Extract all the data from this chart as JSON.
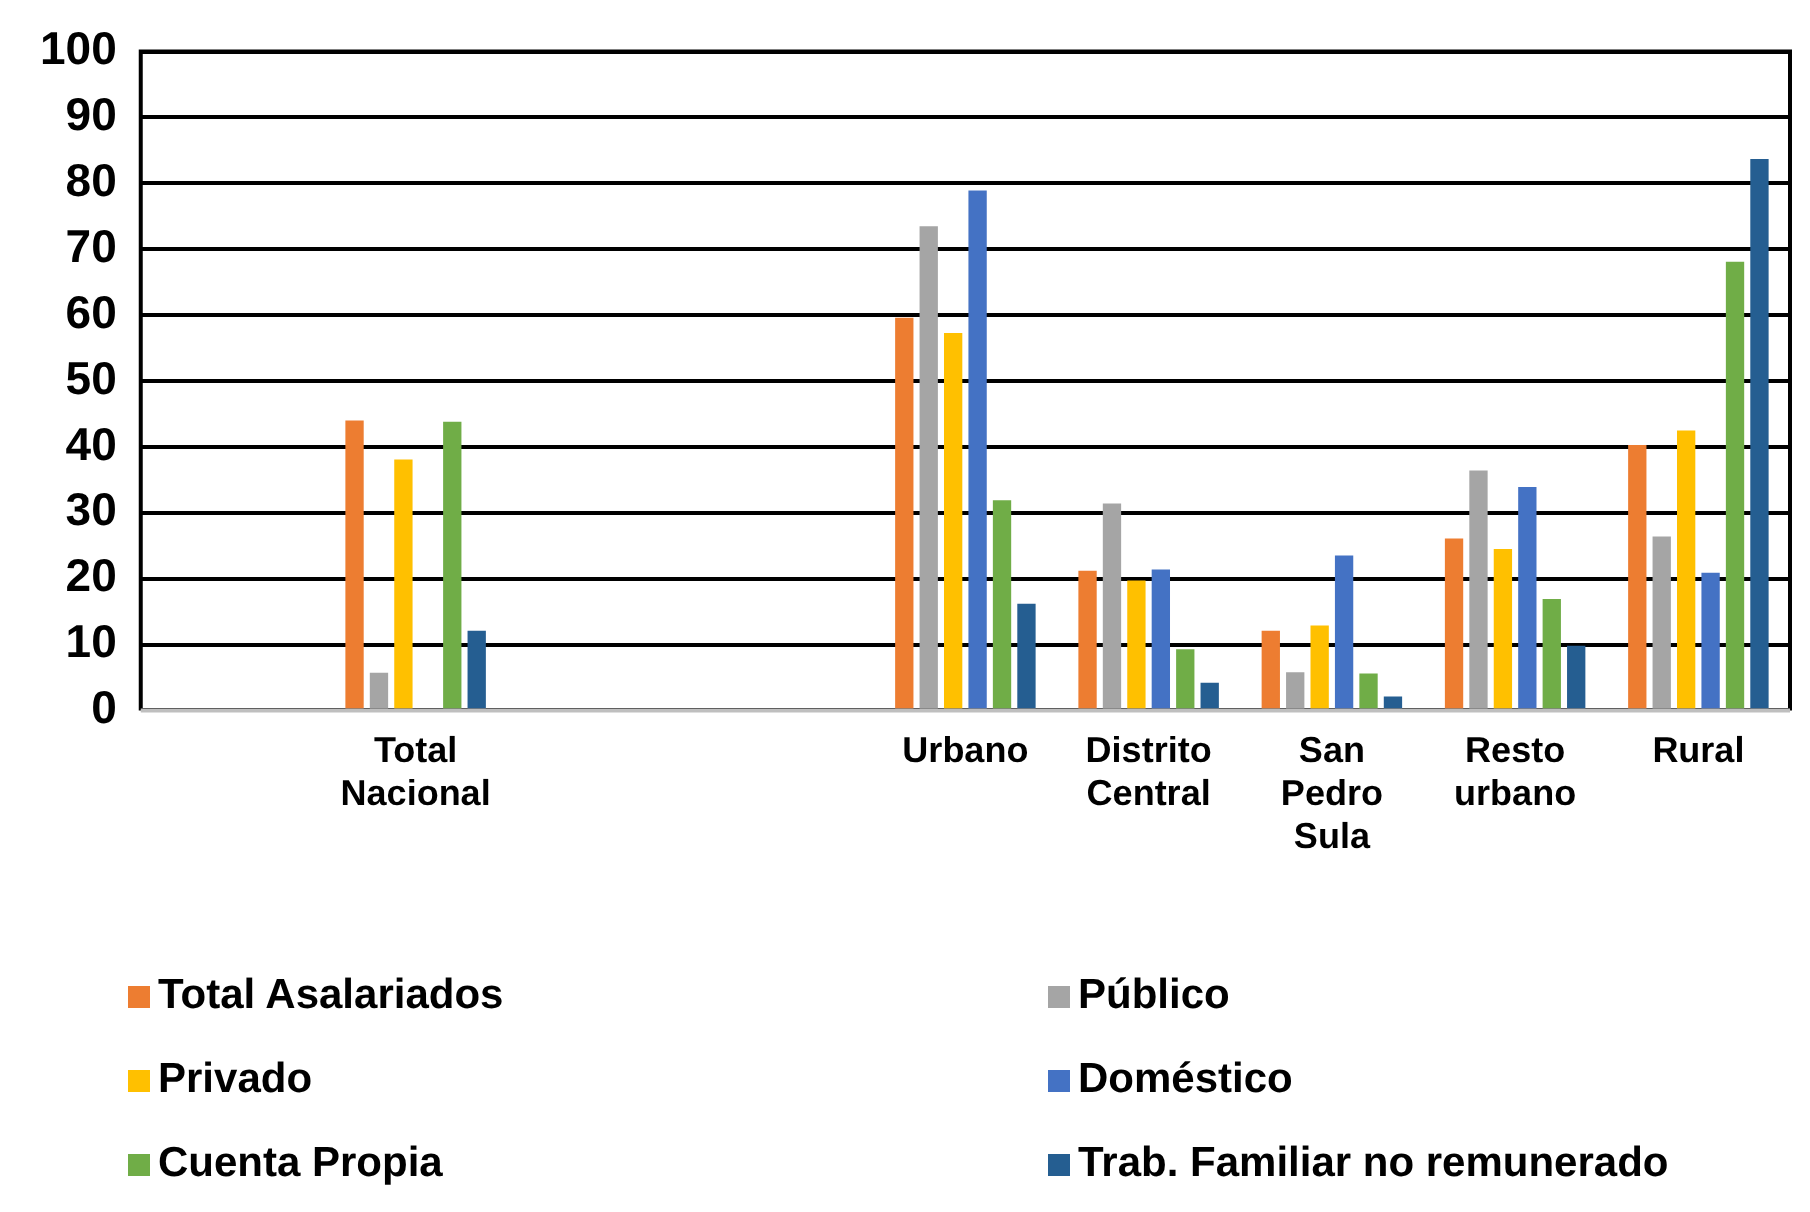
{
  "chart_data": {
    "type": "bar",
    "categories": [
      null,
      "Total Nacional",
      null,
      null,
      "Urbano",
      "Distrito Central",
      "San Pedro Sula",
      "Resto urbano",
      "Rural"
    ],
    "series": [
      {
        "name": "Total Asalariados",
        "color": "#ed7d31",
        "values": [
          null,
          44.0,
          null,
          null,
          59.6,
          21.2,
          12.1,
          26.1,
          40.3
        ]
      },
      {
        "name": "Público",
        "color": "#a5a5a5",
        "values": [
          null,
          5.7,
          null,
          null,
          73.5,
          31.4,
          5.8,
          36.4,
          26.4
        ]
      },
      {
        "name": "Privado",
        "color": "#ffc000",
        "values": [
          null,
          38.1,
          null,
          null,
          57.3,
          19.7,
          12.9,
          24.5,
          42.5
        ]
      },
      {
        "name": "Doméstico",
        "color": "#4472c4",
        "values": [
          null,
          null,
          null,
          null,
          78.9,
          21.4,
          23.5,
          33.9,
          20.9
        ]
      },
      {
        "name": "Cuenta Propia",
        "color": "#70ad47",
        "values": [
          null,
          43.8,
          null,
          null,
          31.9,
          9.3,
          5.6,
          16.9,
          68.1
        ]
      },
      {
        "name": "Trab. Familiar no remunerado",
        "color": "#255e91",
        "values": [
          null,
          12.1,
          null,
          null,
          16.2,
          4.2,
          2.1,
          9.8,
          83.7
        ]
      }
    ],
    "ylim": [
      0,
      100
    ],
    "yticks": [
      0,
      10,
      20,
      30,
      40,
      50,
      60,
      70,
      80,
      90,
      100
    ],
    "grid": "y",
    "legend": "bottom"
  }
}
